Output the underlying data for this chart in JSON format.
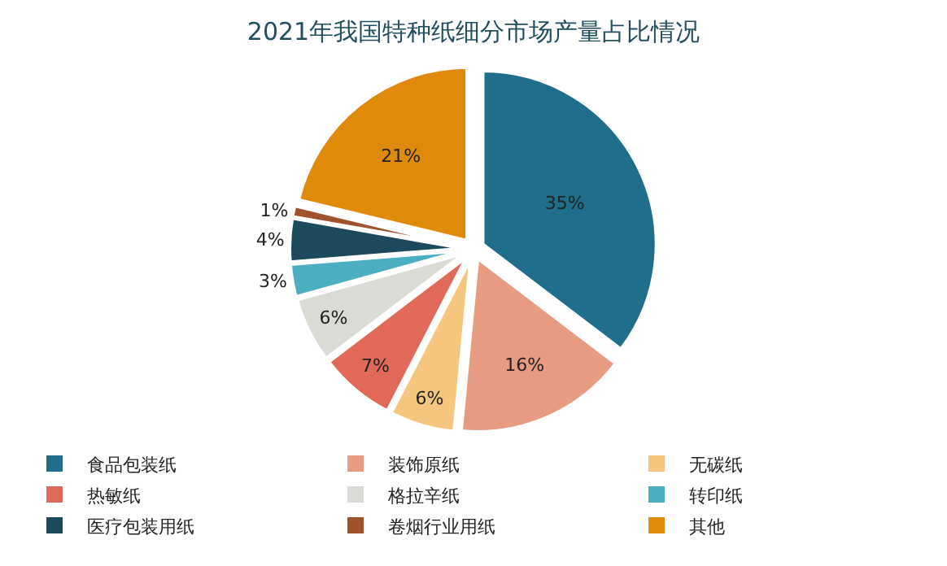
{
  "chart_data": {
    "type": "pie",
    "title": "2021年我国特种纸细分市场产量占比情况",
    "categories": [
      "食品包装纸",
      "装饰原纸",
      "无碳纸",
      "热敏纸",
      "格拉辛纸",
      "转印纸",
      "医疗包装用纸",
      "卷烟行业用纸",
      "其他"
    ],
    "values": [
      35,
      16,
      6,
      7,
      6,
      3,
      4,
      1,
      21
    ],
    "value_labels": [
      "35%",
      "16%",
      "6%",
      "7%",
      "6%",
      "3%",
      "4%",
      "1%",
      "21%"
    ],
    "colors": [
      "#1f6e8c",
      "#e89b80",
      "#f5c77e",
      "#e0695a",
      "#d9dbd5",
      "#4bafc1",
      "#1c4a5c",
      "#a0522d",
      "#e08a0b"
    ],
    "legend": "bottom"
  }
}
